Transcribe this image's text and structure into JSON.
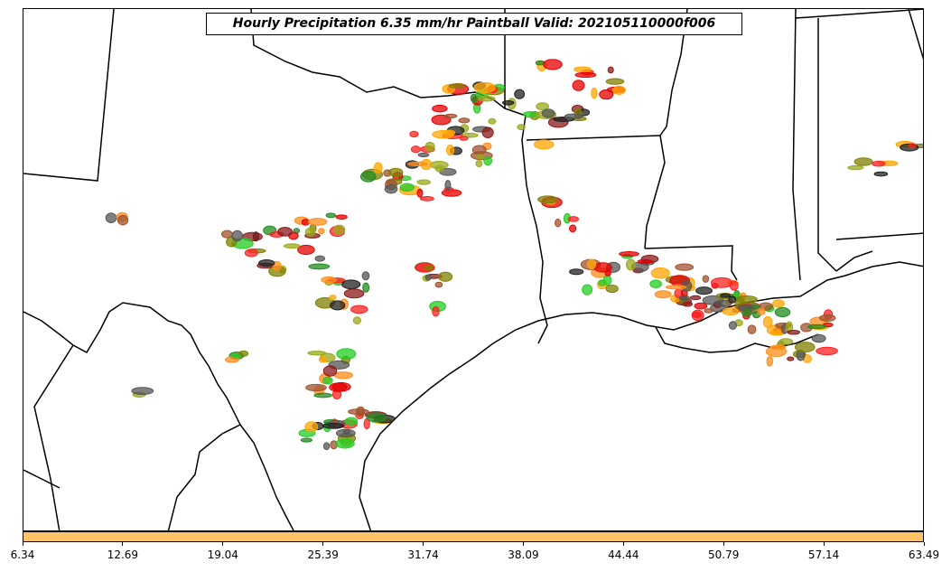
{
  "title": "Hourly Precipitation 6.35 mm/hr Paintball Valid: 202105110000f006",
  "colorbar": {
    "color": "#ffc266",
    "ticks": [
      "6.34",
      "12.69",
      "19.04",
      "25.39",
      "31.74",
      "38.09",
      "44.44",
      "50.79",
      "57.14",
      "63.49"
    ]
  },
  "member_colors": [
    "#ff2222",
    "#e60000",
    "#22cc22",
    "#228b22",
    "#808000",
    "#9aa81a",
    "#ff8c1a",
    "#ffa500",
    "#8b1a1a",
    "#a0522d",
    "#222222",
    "#555555"
  ]
}
